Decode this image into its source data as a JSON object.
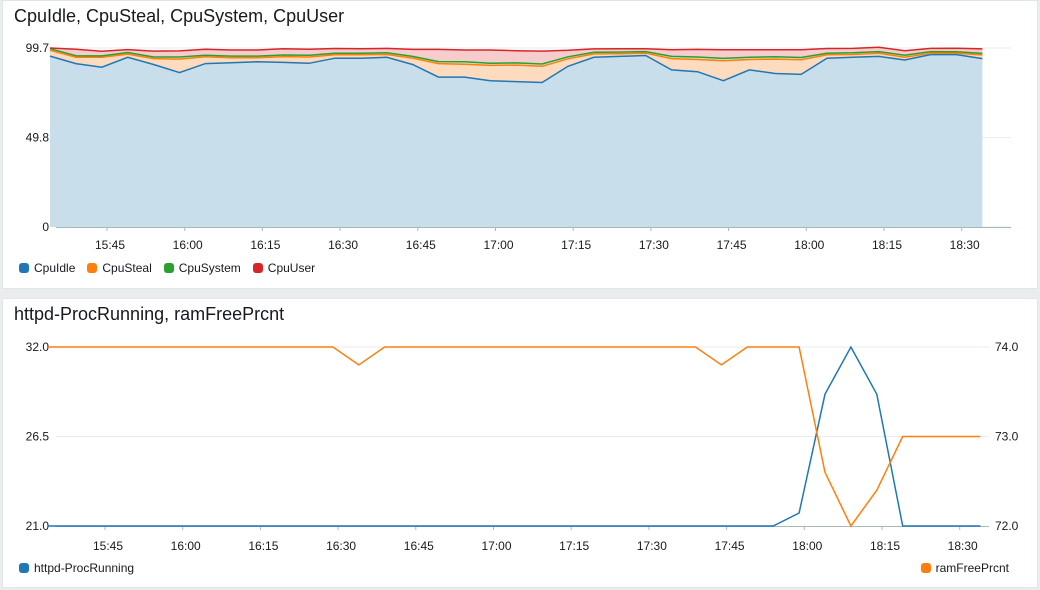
{
  "chart_data": [
    {
      "type": "area",
      "title": "CpuIdle, CpuSteal, CpuSystem, CpuUser",
      "stacked": true,
      "ylim": [
        0,
        99.7
      ],
      "y_ticks": [
        "0",
        "49.8",
        "99.7"
      ],
      "x_ticks": [
        "15:45",
        "16:00",
        "16:15",
        "16:30",
        "16:45",
        "17:00",
        "17:15",
        "17:30",
        "17:45",
        "18:00",
        "18:15",
        "18:30"
      ],
      "x_start": "15:34",
      "x_step_minutes": 5,
      "legend_position": "bottom-left",
      "series": [
        {
          "name": "CpuIdle",
          "color": "#1f77b4",
          "values": [
            95.2,
            91,
            89,
            94.5,
            90.5,
            86,
            91,
            91.5,
            92,
            91.7,
            91.2,
            94,
            94,
            94.5,
            90.5,
            83.5,
            83.5,
            81.5,
            81,
            80.5,
            89.5,
            94.5,
            95,
            95.5,
            87.5,
            86.5,
            81.5,
            87.5,
            85.5,
            85,
            94,
            94.5,
            95,
            93,
            96,
            96,
            93.8
          ]
        },
        {
          "name": "CpuSteal",
          "color": "#ff7f0e",
          "values": [
            3.2,
            3.5,
            5.5,
            1.8,
            3.3,
            7.5,
            3.8,
            2.8,
            2.3,
            3.2,
            3.5,
            1.9,
            1.9,
            1.6,
            3.6,
            7.5,
            7.2,
            8.5,
            9.2,
            9,
            4.2,
            1.9,
            1.5,
            1.3,
            6.3,
            6.8,
            11.1,
            5.8,
            8,
            8.2,
            1.9,
            1.6,
            1.8,
            1.6,
            0.8,
            0.8,
            2
          ]
        },
        {
          "name": "CpuSystem",
          "color": "#2ca02c",
          "values": [
            0.9,
            0.9,
            0.8,
            0.9,
            0.9,
            1.2,
            0.9,
            0.9,
            0.9,
            0.9,
            1,
            0.9,
            0.9,
            0.9,
            0.9,
            1.1,
            1.3,
            1.2,
            1.2,
            1.3,
            1.1,
            0.9,
            0.9,
            0.9,
            1.2,
            1.4,
            1.3,
            1.2,
            1.3,
            1.2,
            0.9,
            0.9,
            0.9,
            1.1,
            0.9,
            0.8,
            0.9
          ]
        },
        {
          "name": "CpuUser",
          "color": "#d62728",
          "values": [
            0.4,
            3.6,
            2.6,
            1.6,
            3.3,
            3.4,
            3.3,
            3.4,
            3.4,
            3.5,
            3.3,
            2.6,
            2.5,
            2.5,
            3.9,
            6.8,
            6.6,
            7.4,
            6.8,
            7.2,
            3.6,
            1.9,
            1.9,
            1.6,
            3.7,
            4.2,
            4.8,
            4.2,
            3.9,
            4.3,
            2.6,
            2.5,
            2.4,
            2.5,
            1.8,
            2,
            2.5
          ]
        }
      ]
    },
    {
      "type": "line",
      "title": "httpd-ProcRunning, ramFreePrcnt",
      "x_ticks": [
        "15:45",
        "16:00",
        "16:15",
        "16:30",
        "16:45",
        "17:00",
        "17:15",
        "17:30",
        "17:45",
        "18:00",
        "18:15",
        "18:30"
      ],
      "x_start": "15:34",
      "x_step_minutes": 5,
      "y_left": {
        "ylim": [
          21.0,
          32.0
        ],
        "ticks": [
          "21.0",
          "26.5",
          "32.0"
        ]
      },
      "y_right": {
        "ylim": [
          72.0,
          74.0
        ],
        "ticks": [
          "72.0",
          "73.0",
          "74.0"
        ]
      },
      "series": [
        {
          "name": "httpd-ProcRunning",
          "color": "#1f77b4",
          "axis": "left",
          "legend_position": "bottom-left",
          "values": [
            21,
            21,
            21,
            21,
            21,
            21,
            21,
            21,
            21,
            21,
            21,
            21,
            21,
            21,
            21,
            21,
            21,
            21,
            21,
            21,
            21,
            21,
            21,
            21,
            21,
            21,
            21,
            21,
            21,
            21.8,
            29.1,
            32,
            29.1,
            21,
            21,
            21,
            21
          ]
        },
        {
          "name": "ramFreePrcnt",
          "color": "#ff7f0e",
          "axis": "right",
          "legend_position": "bottom-right",
          "values": [
            74,
            74,
            74,
            74,
            74,
            74,
            74,
            74,
            74,
            74,
            74,
            74,
            73.8,
            74,
            74,
            74,
            74,
            74,
            74,
            74,
            74,
            74,
            74,
            74,
            74,
            74,
            73.8,
            74,
            74,
            74,
            72.6,
            72,
            72.4,
            73,
            73,
            73,
            73
          ]
        }
      ]
    }
  ]
}
